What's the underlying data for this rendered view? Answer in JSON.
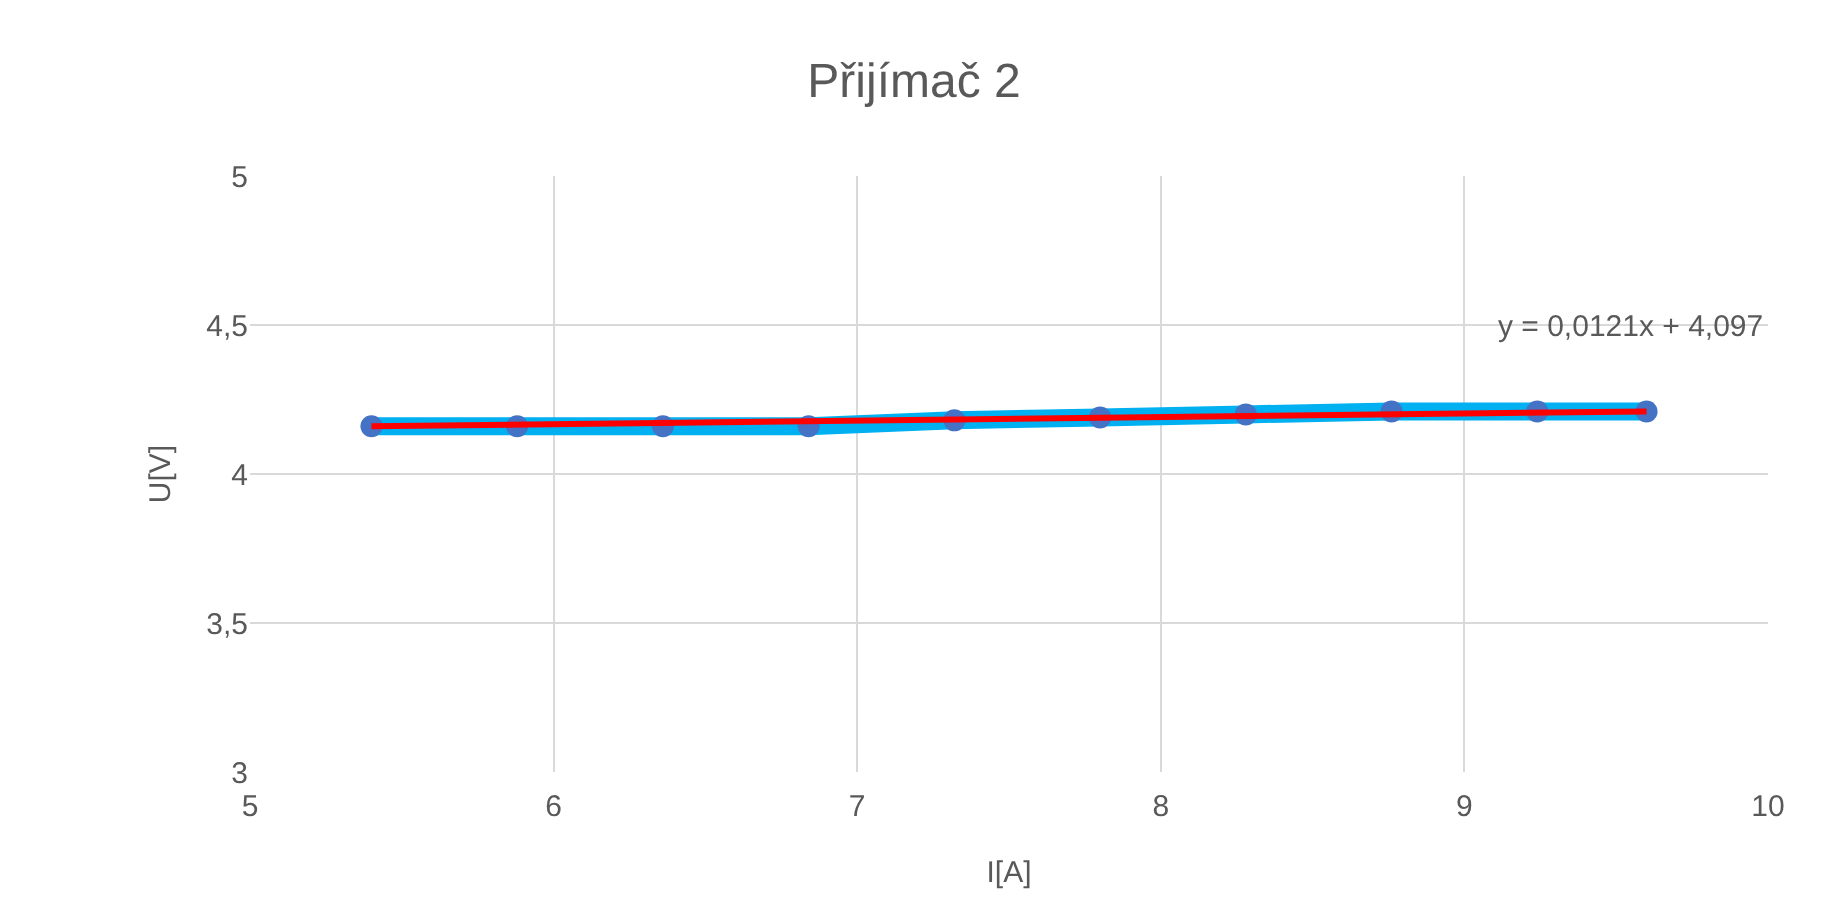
{
  "chart_data": {
    "type": "line",
    "title": "Přijímač 2",
    "xlabel": "I[A]",
    "ylabel": "U[V]",
    "xlim": [
      5,
      10
    ],
    "xticks": [
      5,
      6,
      7,
      8,
      9,
      10
    ],
    "ylim": [
      3,
      5
    ],
    "yticks": [
      3,
      {
        "value": 3.5,
        "label": "3,5"
      },
      4,
      {
        "value": 4.5,
        "label": "4,5"
      },
      5
    ],
    "grid": true,
    "marker": "circle",
    "line_style": "solid",
    "series": [
      {
        "color": "#00b0f0",
        "x": [
          5.4,
          5.88,
          6.36,
          6.84,
          7.32,
          7.8,
          8.28,
          8.76,
          9.24,
          9.6
        ],
        "values": [
          4.16,
          4.16,
          4.16,
          4.16,
          4.18,
          4.19,
          4.2,
          4.21,
          4.21,
          4.21
        ]
      },
      {
        "color": "#ff0000",
        "x": [
          5.4,
          9.6
        ],
        "values": [
          4.16,
          4.21
        ],
        "marker": "none"
      }
    ],
    "annotations": [
      "y = 0,0121x + 4,097"
    ]
  }
}
